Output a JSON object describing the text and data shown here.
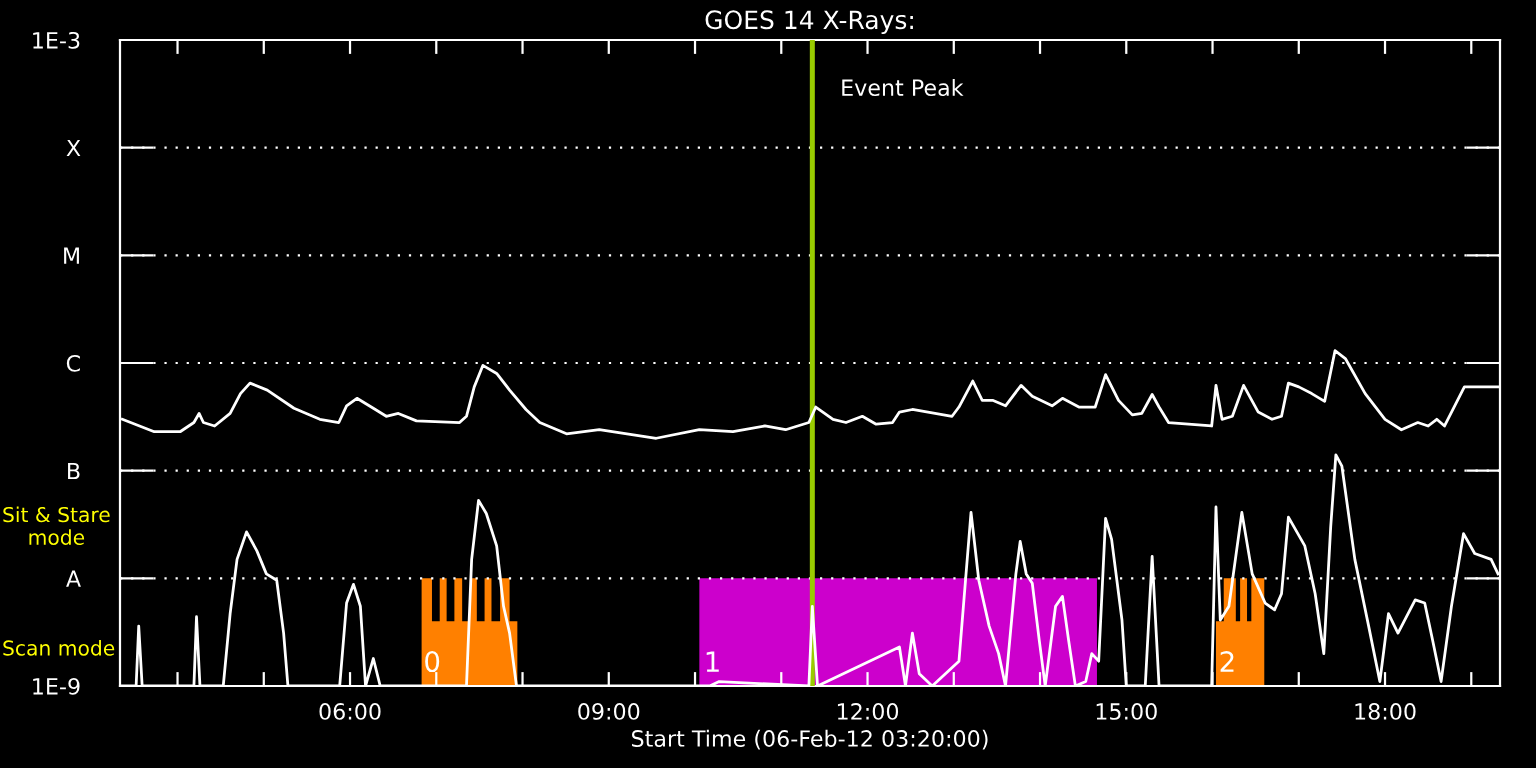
{
  "chart_data": {
    "type": "line",
    "title": "GOES 14 X-Rays:",
    "xlabel": "Start Time (06-Feb-12 03:20:00)",
    "log": "y",
    "grid": "y",
    "xlim": [
      3.333,
      19.333
    ],
    "ylim": [
      1e-09,
      0.001
    ],
    "xticks": [
      {
        "value": 4,
        "label": null
      },
      {
        "value": 5,
        "label": null
      },
      {
        "value": 6,
        "label": "06:00"
      },
      {
        "value": 7,
        "label": null
      },
      {
        "value": 8,
        "label": null
      },
      {
        "value": 9,
        "label": "09:00"
      },
      {
        "value": 10,
        "label": null
      },
      {
        "value": 11,
        "label": null
      },
      {
        "value": 12,
        "label": "12:00"
      },
      {
        "value": 13,
        "label": null
      },
      {
        "value": 14,
        "label": null
      },
      {
        "value": 15,
        "label": "15:00"
      },
      {
        "value": 16,
        "label": null
      },
      {
        "value": 17,
        "label": null
      },
      {
        "value": 18,
        "label": "18:00"
      },
      {
        "value": 19,
        "label": null
      }
    ],
    "yticks": [
      {
        "value": 1e-09,
        "label": "1E-9"
      },
      {
        "value": 1e-08,
        "label": "A"
      },
      {
        "value": 1e-07,
        "label": "B"
      },
      {
        "value": 1e-06,
        "label": "C"
      },
      {
        "value": 1e-05,
        "label": "M"
      },
      {
        "value": 0.0001,
        "label": "X"
      },
      {
        "value": 0.001,
        "label": "1E-3"
      }
    ],
    "series": [
      {
        "type": "area",
        "color": "#ff8000",
        "x": [
          6.83,
          6.83,
          6.95,
          6.95,
          7.04,
          7.04,
          7.12,
          7.12,
          7.21,
          7.21,
          7.3,
          7.3,
          7.39,
          7.39,
          7.47,
          7.47,
          7.56,
          7.56,
          7.64,
          7.64,
          7.74,
          7.74,
          7.85,
          7.85,
          7.94,
          7.94
        ],
        "values": [
          1e-09,
          1e-08,
          1e-08,
          4e-09,
          4e-09,
          1e-08,
          1e-08,
          4e-09,
          4e-09,
          1e-08,
          1e-08,
          4e-09,
          4e-09,
          1e-08,
          1e-08,
          4e-09,
          4e-09,
          1e-08,
          1e-08,
          4e-09,
          4e-09,
          1e-08,
          1e-08,
          4e-09,
          4e-09,
          1e-09
        ]
      },
      {
        "type": "area",
        "color": "#cc00cc",
        "x": [
          10.05,
          10.05,
          14.66,
          14.66
        ],
        "values": [
          1e-09,
          1e-08,
          1e-08,
          1e-09
        ]
      },
      {
        "type": "area",
        "color": "#ff8000",
        "x": [
          16.04,
          16.04,
          16.13,
          16.13,
          16.27,
          16.27,
          16.32,
          16.32,
          16.4,
          16.4,
          16.45,
          16.45,
          16.6,
          16.6
        ],
        "values": [
          1e-09,
          4e-09,
          4e-09,
          1e-08,
          1e-08,
          4e-09,
          4e-09,
          1e-08,
          1e-08,
          4e-09,
          4e-09,
          1e-08,
          1e-08,
          1e-09
        ]
      },
      {
        "color": "#ffffff",
        "x": [
          3.36,
          3.73,
          4.03,
          4.19,
          4.25,
          4.3,
          4.43,
          4.61,
          4.73,
          4.84,
          5.04,
          5.35,
          5.65,
          5.87,
          5.96,
          6.08,
          6.27,
          6.42,
          6.56,
          6.77,
          7.27,
          7.35,
          7.44,
          7.54,
          7.7,
          7.85,
          8.04,
          8.2,
          8.51,
          8.89,
          9.55,
          10.05,
          10.44,
          10.81,
          11.05,
          11.32,
          11.4,
          11.6,
          11.75,
          11.94,
          12.1,
          12.29,
          12.37,
          12.52,
          12.98,
          13.06,
          13.22,
          13.33,
          13.45,
          13.6,
          13.78,
          13.91,
          14.14,
          14.26,
          14.45,
          14.64,
          14.76,
          14.91,
          15.07,
          15.18,
          15.3,
          15.38,
          15.49,
          15.99,
          16.04,
          16.11,
          16.23,
          16.36,
          16.53,
          16.69,
          16.8,
          16.88,
          17.0,
          17.15,
          17.3,
          17.42,
          17.54,
          17.77,
          18.0,
          18.19,
          18.38,
          18.5,
          18.6,
          18.69,
          18.92,
          19.31
        ],
        "values": [
          3e-07,
          2.3e-07,
          2.3e-07,
          2.8e-07,
          3.4e-07,
          2.8e-07,
          2.6e-07,
          3.4e-07,
          5.2e-07,
          6.5e-07,
          5.6e-07,
          3.8e-07,
          3e-07,
          2.8e-07,
          4e-07,
          4.7e-07,
          3.8e-07,
          3.2e-07,
          3.4e-07,
          2.9e-07,
          2.8e-07,
          3.2e-07,
          6e-07,
          9.5e-07,
          8e-07,
          5.6e-07,
          3.7e-07,
          2.8e-07,
          2.2e-07,
          2.4e-07,
          2e-07,
          2.4e-07,
          2.3e-07,
          2.6e-07,
          2.4e-07,
          2.8e-07,
          3.9e-07,
          3e-07,
          2.8e-07,
          3.2e-07,
          2.7e-07,
          2.8e-07,
          3.5e-07,
          3.7e-07,
          3.2e-07,
          3.9e-07,
          6.8e-07,
          4.5e-07,
          4.5e-07,
          4e-07,
          6.2e-07,
          4.9e-07,
          4e-07,
          4.7e-07,
          3.9e-07,
          3.9e-07,
          7.8e-07,
          4.5e-07,
          3.3e-07,
          3.4e-07,
          5.1e-07,
          3.9e-07,
          2.8e-07,
          2.6e-07,
          6.2e-07,
          3e-07,
          3.2e-07,
          6.2e-07,
          3.5e-07,
          3e-07,
          3.2e-07,
          6.5e-07,
          6e-07,
          5.2e-07,
          4.4e-07,
          1.3e-06,
          1.1e-06,
          5.2e-07,
          3e-07,
          2.4e-07,
          2.8e-07,
          2.6e-07,
          3e-07,
          2.6e-07,
          6e-07,
          6e-07
        ]
      },
      {
        "color": "#ffffff",
        "x": [
          3.36,
          3.52,
          3.55,
          3.59,
          4.19,
          4.22,
          4.26,
          4.53,
          4.61,
          4.69,
          4.8,
          4.92,
          5.03,
          5.15,
          5.23,
          5.28,
          5.88,
          5.96,
          6.04,
          6.12,
          6.18,
          6.27,
          6.35,
          7.35,
          7.41,
          7.49,
          7.58,
          7.7,
          7.78,
          7.85,
          7.93,
          10.17,
          10.28,
          11.32,
          11.36,
          11.42,
          12.37,
          12.44,
          12.52,
          12.6,
          12.75,
          13.06,
          13.2,
          13.29,
          13.41,
          13.52,
          13.6,
          13.72,
          13.77,
          13.84,
          13.91,
          13.99,
          14.06,
          14.18,
          14.26,
          14.33,
          14.41,
          14.53,
          14.6,
          14.68,
          14.76,
          14.83,
          14.95,
          15.0,
          15.22,
          15.3,
          15.38,
          15.99,
          16.04,
          16.09,
          16.19,
          16.34,
          16.46,
          16.61,
          16.72,
          16.8,
          16.88,
          17.07,
          17.19,
          17.29,
          17.37,
          17.43,
          17.5,
          17.65,
          17.81,
          17.94,
          18.04,
          18.15,
          18.35,
          18.46,
          18.55,
          18.65,
          18.77,
          18.91,
          19.04,
          19.23,
          19.31
        ],
        "values": [
          1e-09,
          1e-09,
          3.6e-09,
          1e-09,
          1e-09,
          4.4e-09,
          1e-09,
          1e-09,
          4.7e-09,
          1.5e-08,
          2.7e-08,
          1.8e-08,
          1.1e-08,
          9.6e-09,
          3.1e-09,
          1e-09,
          1e-09,
          5.9e-09,
          8.8e-09,
          5.5e-09,
          1e-09,
          1.8e-09,
          1e-09,
          1e-09,
          1.5e-08,
          5.3e-08,
          4e-08,
          2e-08,
          5.5e-09,
          3.1e-09,
          1e-09,
          1e-09,
          1.1e-09,
          1e-09,
          5.5e-09,
          1e-09,
          2.3e-09,
          1e-09,
          3.1e-09,
          1.3e-09,
          1e-09,
          1.7e-09,
          4.1e-08,
          9.6e-09,
          3.6e-09,
          2e-09,
          1e-09,
          1.1e-08,
          2.2e-08,
          1.1e-08,
          9e-09,
          2.7e-09,
          1e-09,
          5.5e-09,
          6.8e-09,
          2.7e-09,
          1e-09,
          1.1e-09,
          2e-09,
          1.7e-09,
          3.6e-08,
          2.3e-08,
          4.1e-09,
          1e-09,
          1e-09,
          1.6e-08,
          1e-09,
          1e-09,
          4.6e-08,
          4.1e-09,
          5.5e-09,
          4.1e-08,
          1.1e-08,
          5.9e-09,
          5.1e-09,
          7.2e-09,
          3.7e-08,
          2e-08,
          7.2e-09,
          2e-09,
          3e-08,
          1.4e-07,
          1.1e-07,
          1.5e-08,
          3.6e-09,
          1.1e-09,
          4.7e-09,
          3.1e-09,
          6.3e-09,
          5.9e-09,
          2.7e-09,
          1.1e-09,
          5.5e-09,
          2.6e-08,
          1.7e-08,
          1.5e-08,
          1.1e-08
        ]
      }
    ],
    "ref_lines": [
      {
        "axis": "x",
        "value": 11.36,
        "label": "Event Peak",
        "color": "#99cc00"
      }
    ],
    "annotations": [
      {
        "text": "0",
        "x": 6.85,
        "y": 1.2e-09
      },
      {
        "text": "1",
        "x": 10.1,
        "y": 1.2e-09
      },
      {
        "text": "2",
        "x": 16.07,
        "y": 1.2e-09
      },
      "Sit & Stare\nmode",
      "Scan mode"
    ]
  }
}
